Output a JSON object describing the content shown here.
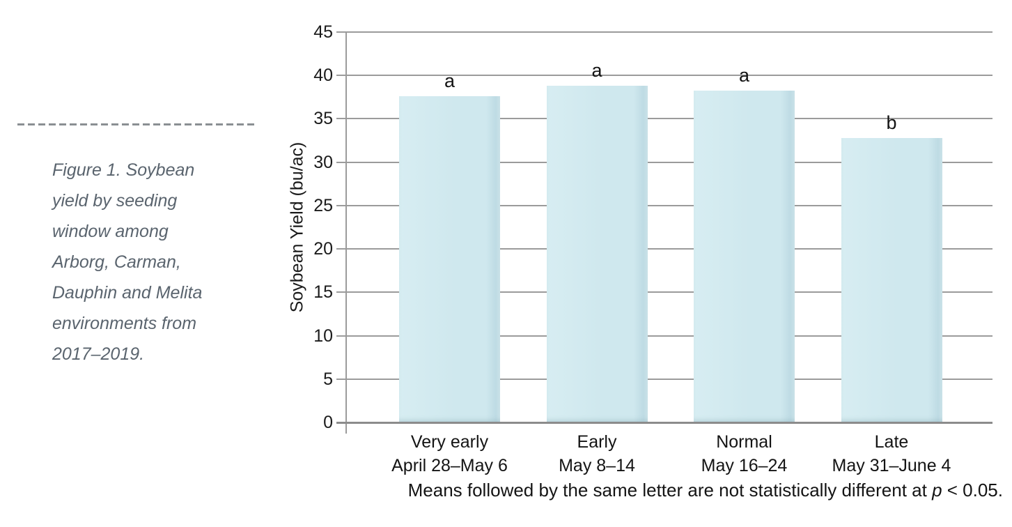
{
  "figure": {
    "caption": "Figure 1. Soybean\nyield by seeding\nwindow among\nArborg, Carman,\nDauphin and Melita\nenvironments from\n2017–2019."
  },
  "chart_data": {
    "type": "bar",
    "title": "",
    "xlabel": "",
    "ylabel": "Soybean Yield (bu/ac)",
    "ylim": [
      0,
      45
    ],
    "yticks": [
      0,
      5,
      10,
      15,
      20,
      25,
      30,
      35,
      40,
      45
    ],
    "grid": true,
    "legend": "none",
    "categories": [
      {
        "label": "Very early",
        "dates": "April 28–May 6"
      },
      {
        "label": "Early",
        "dates": "May 8–14"
      },
      {
        "label": "Normal",
        "dates": "May 16–24"
      },
      {
        "label": "Late",
        "dates": "May 31–June 4"
      }
    ],
    "values": [
      37.5,
      38.7,
      38.2,
      32.7
    ],
    "sig_letters": [
      "a",
      "a",
      "a",
      "b"
    ],
    "colors": {
      "bar_fill": "#cfe8ee",
      "bar_fill_light": "#d7edf2",
      "bar_edge_shade": "#bedbe4",
      "bar_edge_outer": "#cde4ea",
      "gridline": "#9b9b9b",
      "caption_text": "#5a646e"
    },
    "note_prefix": "Means followed by the same letter are not statistically different at ",
    "note_var": "p",
    "note_suffix": " < 0.05."
  }
}
